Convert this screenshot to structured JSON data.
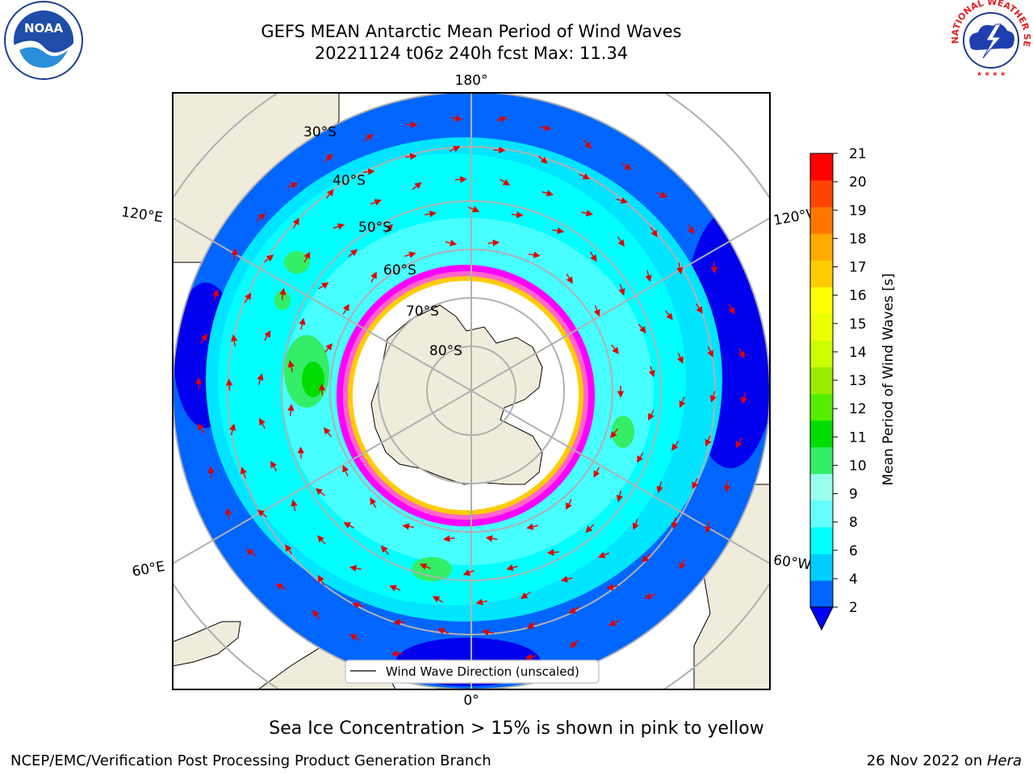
{
  "title": {
    "line1": "GEFS MEAN Antarctic Mean Period of Wind Waves",
    "line2": "20221124 t06z 240h fcst   Max: 11.34"
  },
  "map": {
    "longitude_labels": {
      "top": "180°",
      "bottom": "0°",
      "upper_left": "120°E",
      "upper_right": "120°W",
      "lower_left": "60°E",
      "lower_right": "60°W"
    },
    "latitude_labels": [
      "30°S",
      "40°S",
      "50°S",
      "60°S",
      "70°S",
      "80°S"
    ],
    "legend_label": "Wind Wave Direction (unscaled)",
    "land_color": "#efecdc",
    "ice_colors": [
      "#ff00ff",
      "#ff66cc",
      "#ffcc00"
    ],
    "arrow_color": "#ee0000"
  },
  "colorbar": {
    "label": "Mean Period of Wind Waves [s]",
    "ticks": [
      "2",
      "4",
      "6",
      "8",
      "9",
      "10",
      "11",
      "12",
      "13",
      "14",
      "15",
      "16",
      "17",
      "18",
      "19",
      "20",
      "21"
    ],
    "colors": [
      "#0066ff",
      "#00ccff",
      "#00ffff",
      "#66ffff",
      "#99ffee",
      "#33ee66",
      "#00dd00",
      "#55ee00",
      "#99ee00",
      "#ccff00",
      "#eeff00",
      "#ffff00",
      "#ffcc00",
      "#ffaa00",
      "#ff7700",
      "#ff4400",
      "#ff0000"
    ],
    "under_color": "#0000ff"
  },
  "caption": "Sea Ice Concentration > 15% is shown in pink to yellow",
  "footer": {
    "left": "NCEP/EMC/Verification Post Processing Product Generation Branch",
    "right_date": "26 Nov 2022 on ",
    "right_host": "Hera"
  },
  "logos": {
    "noaa_text": "NOAA",
    "nws_text": "NATIONAL WEATHER SERVICE"
  }
}
